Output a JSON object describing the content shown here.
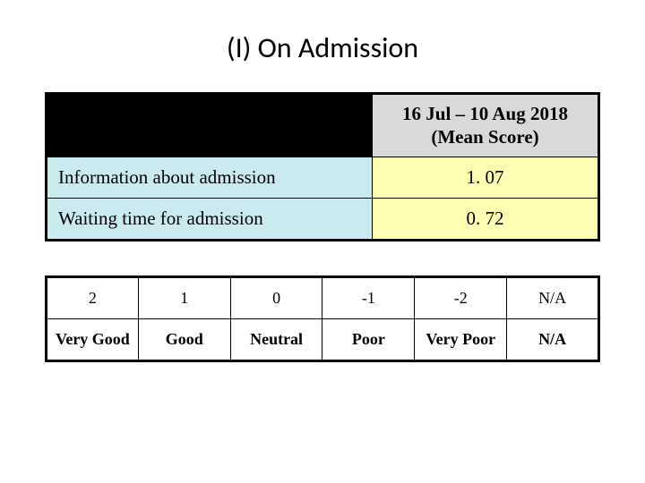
{
  "title": "(I) On Admission",
  "score_table": {
    "period_line1": "16 Jul – 10 Aug 2018",
    "period_line2": "(Mean Score)",
    "rows": [
      {
        "label": "Information about admission",
        "value": "1. 07"
      },
      {
        "label": "Waiting time for admission",
        "value": "0. 72"
      }
    ],
    "colors": {
      "header_bg": "#d9d9d9",
      "blank_bg": "#000000",
      "label_bg": "#caeaf0",
      "value_bg": "#ffffb3",
      "border": "#000000"
    }
  },
  "legend": {
    "scores": [
      "2",
      "1",
      "0",
      "-1",
      "-2",
      "N/A"
    ],
    "labels": [
      "Very Good",
      "Good",
      "Neutral",
      "Poor",
      "Very Poor",
      "N/A"
    ]
  }
}
